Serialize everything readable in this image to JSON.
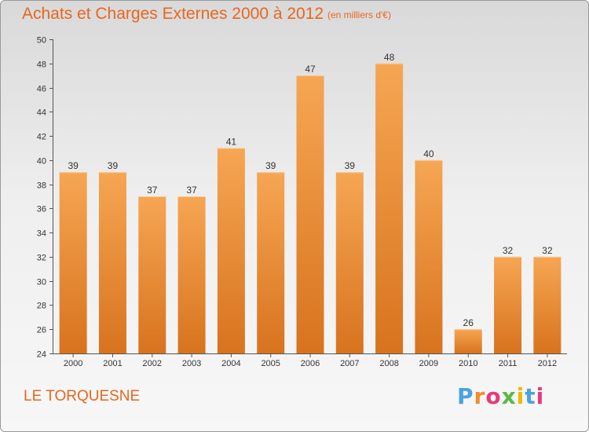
{
  "header": {
    "title": "Achats et Charges Externes 2000 à 2012",
    "subtitle": "(en milliers d'€)"
  },
  "footer": {
    "place": "LE TORQUESNE",
    "logo_text": "Proxiti"
  },
  "colors": {
    "title": "#e8661e",
    "bar_top": "#f6a653",
    "bar_bottom": "#d8731e",
    "logo_p": "#4aa3df",
    "logo_r": "#f28c28",
    "logo_o": "#e63a7a",
    "logo_x": "#59b948",
    "logo_i": "#f2b705"
  },
  "chart_data": {
    "type": "bar",
    "title": "Achats et Charges Externes 2000 à 2012",
    "subtitle": "(en milliers d'€)",
    "categories": [
      "2000",
      "2001",
      "2002",
      "2003",
      "2004",
      "2005",
      "2006",
      "2007",
      "2008",
      "2009",
      "2010",
      "2011",
      "2012"
    ],
    "values": [
      39,
      39,
      37,
      37,
      41,
      39,
      47,
      39,
      48,
      40,
      26,
      32,
      32
    ],
    "ylim": [
      24,
      50
    ],
    "yticks": [
      24,
      26,
      28,
      30,
      32,
      34,
      36,
      38,
      40,
      42,
      44,
      46,
      48,
      50
    ],
    "grid": false,
    "data_labels": true
  }
}
